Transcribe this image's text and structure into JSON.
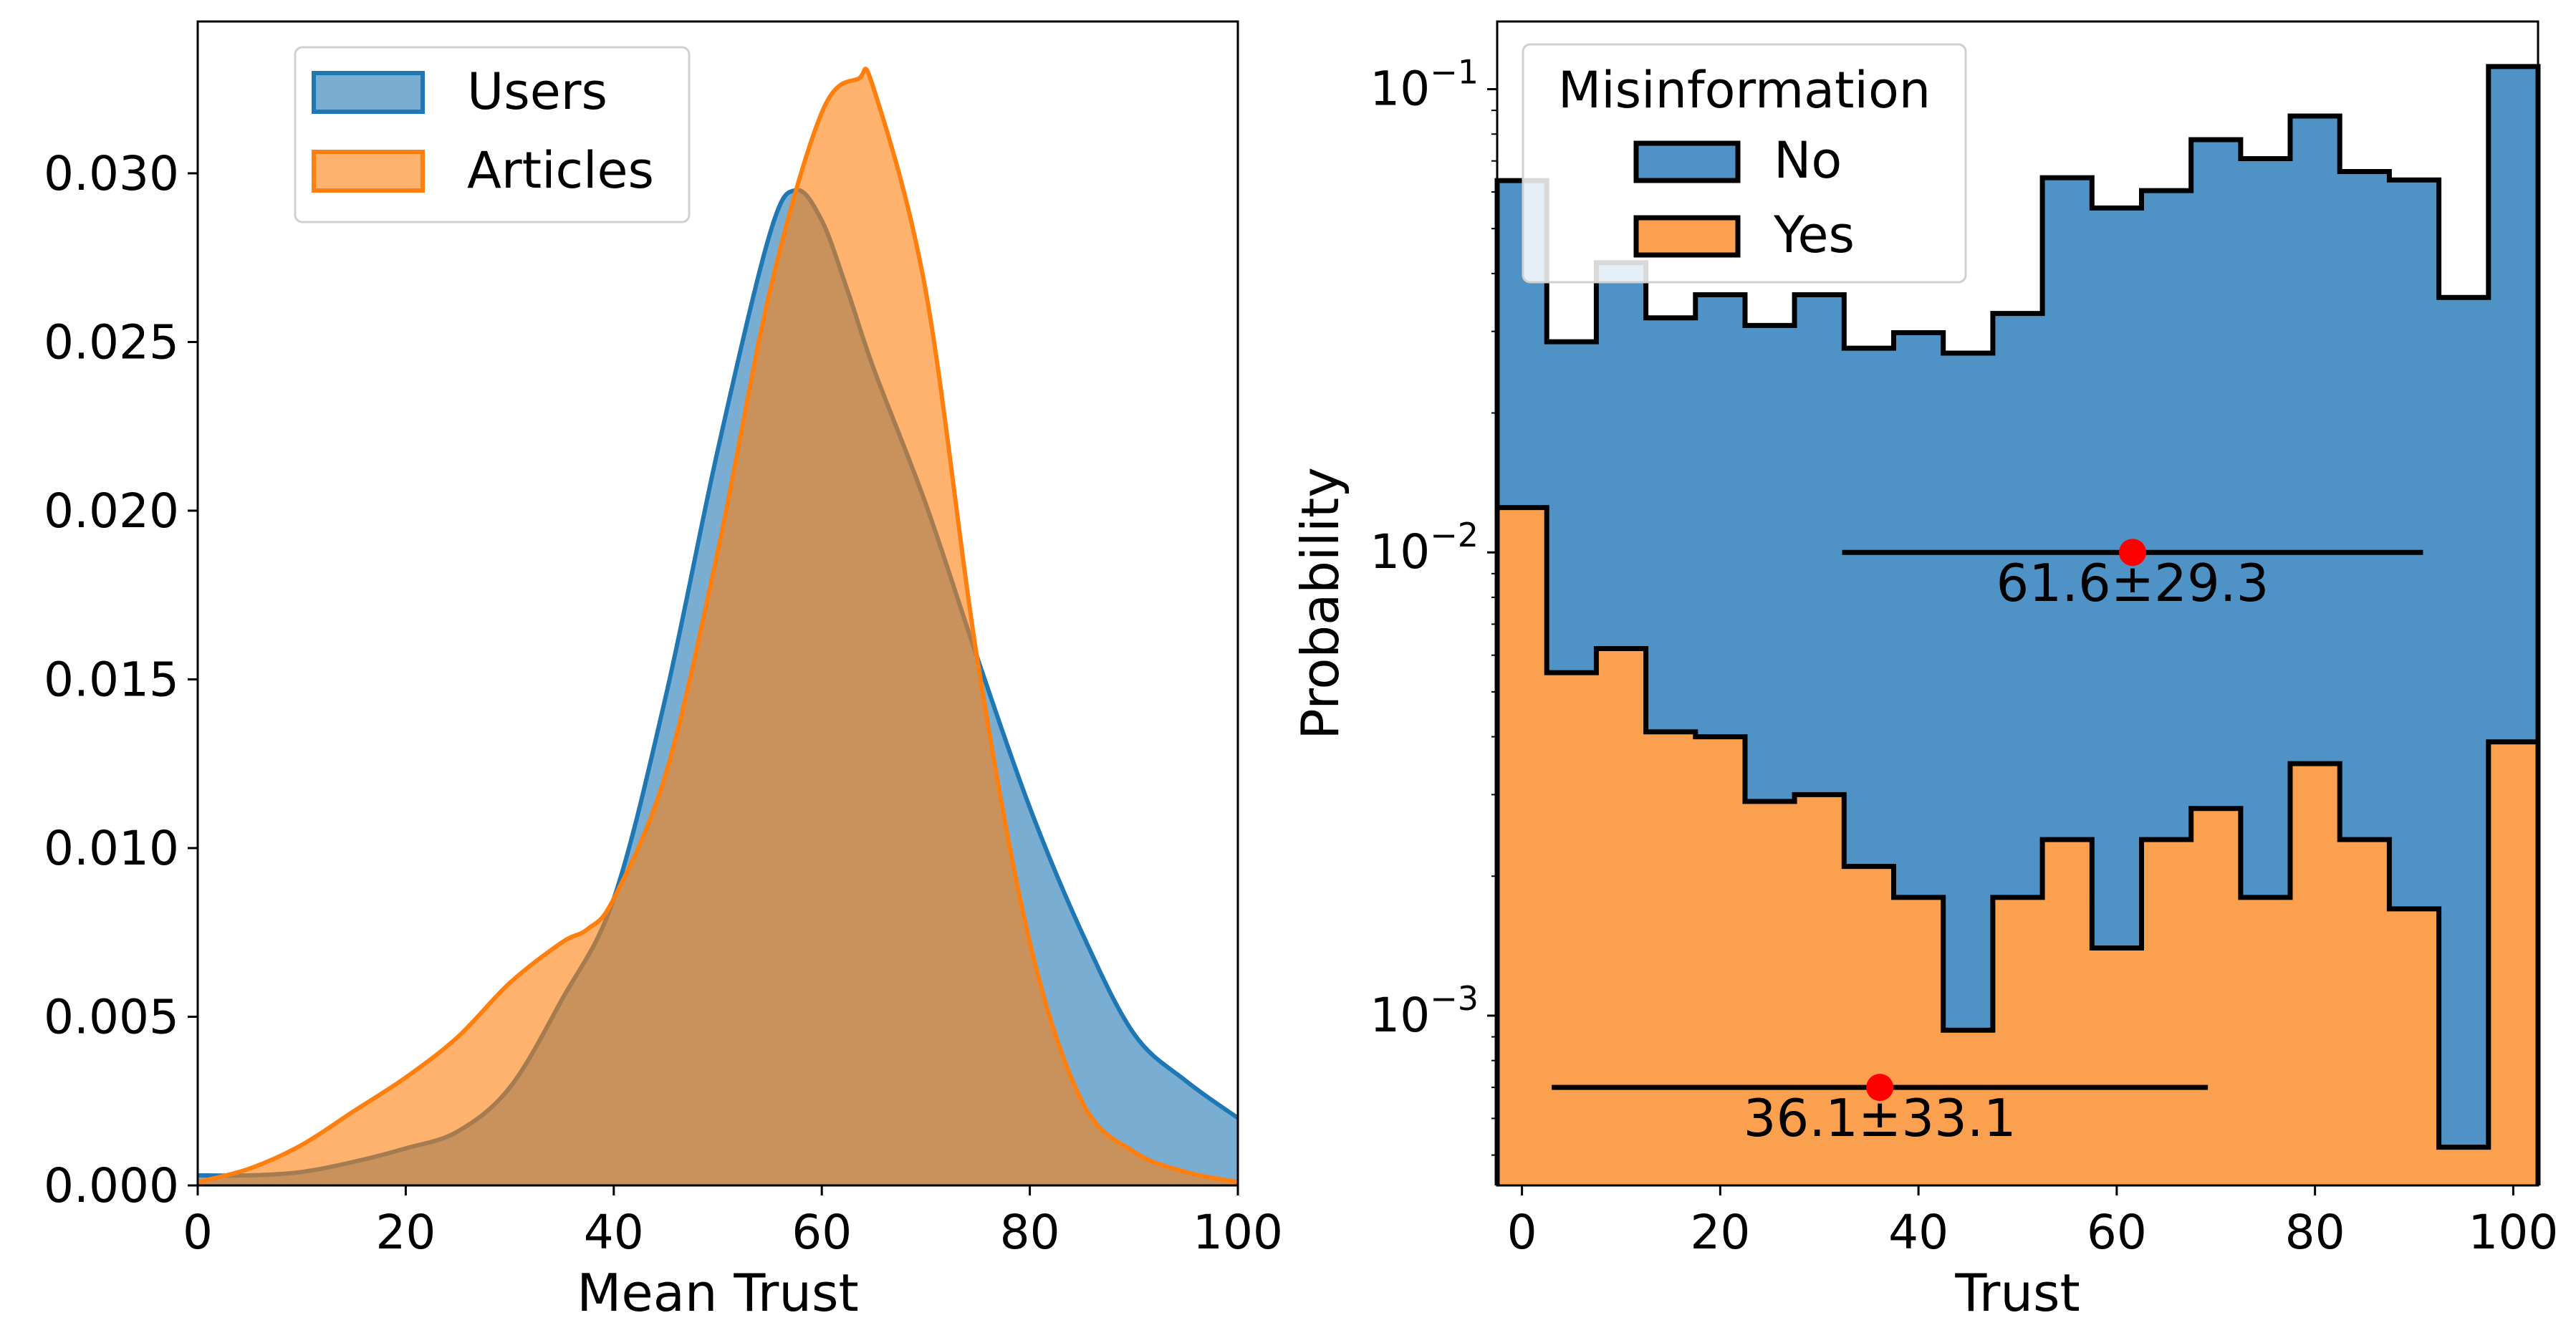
{
  "colors": {
    "users": "#1f77b4",
    "articles": "#ff7f0e",
    "no": "#4f93c6",
    "yes": "#fba04e",
    "mean_marker": "#ff0000"
  },
  "chart_data": [
    {
      "type": "area",
      "xlabel": "Mean Trust",
      "ylabel": "",
      "xlim": [
        0,
        100
      ],
      "ylim": [
        0,
        0.0345
      ],
      "xticks": [
        "0",
        "20",
        "40",
        "60",
        "80",
        "100"
      ],
      "yticks": [
        "0.000",
        "0.005",
        "0.010",
        "0.015",
        "0.020",
        "0.025",
        "0.030"
      ],
      "legend": {
        "placement": "top-left"
      },
      "series": [
        {
          "name": "Users",
          "x": [
            0,
            5,
            10,
            15,
            20,
            25,
            30,
            35,
            40,
            45,
            50,
            55,
            57.5,
            60,
            62.5,
            65,
            70,
            75,
            80,
            85,
            90,
            95,
            100
          ],
          "y": [
            0.0003,
            0.0003,
            0.0004,
            0.0007,
            0.0011,
            0.0016,
            0.0029,
            0.0055,
            0.0085,
            0.0145,
            0.0218,
            0.0282,
            0.0295,
            0.0286,
            0.0265,
            0.0242,
            0.0202,
            0.0156,
            0.0112,
            0.0075,
            0.0045,
            0.0031,
            0.002
          ]
        },
        {
          "name": "Articles",
          "x": [
            0,
            5,
            10,
            15,
            20,
            25,
            30,
            35,
            37.5,
            40,
            45,
            50,
            55,
            60,
            63.5,
            65,
            70,
            75,
            80,
            85,
            90,
            95,
            100
          ],
          "y": [
            0.0001,
            0.0005,
            0.0012,
            0.0022,
            0.0032,
            0.0044,
            0.006,
            0.0072,
            0.0076,
            0.0085,
            0.0122,
            0.0188,
            0.0265,
            0.0318,
            0.0328,
            0.0325,
            0.0265,
            0.0155,
            0.0072,
            0.0025,
            0.001,
            0.0004,
            0.0001
          ]
        }
      ]
    },
    {
      "type": "bar",
      "subtype": "stacked-step-histogram",
      "xlabel": "Trust",
      "ylabel": "Probability",
      "xlim": [
        -2.5,
        102.5
      ],
      "ylim": [
        0.00043,
        0.14
      ],
      "yscale": "log",
      "xticks": [
        "0",
        "20",
        "40",
        "60",
        "80",
        "100"
      ],
      "yticks": [
        {
          "base": "10",
          "exp": "−1",
          "value": 0.1
        },
        {
          "base": "10",
          "exp": "−2",
          "value": 0.01
        },
        {
          "base": "10",
          "exp": "−3",
          "value": 0.001
        }
      ],
      "legend": {
        "title": "Misinformation",
        "placement": "top-left"
      },
      "bin_edges": [
        -2.5,
        2.5,
        7.5,
        12.5,
        17.5,
        22.5,
        27.5,
        32.5,
        37.5,
        42.5,
        47.5,
        52.5,
        57.5,
        62.5,
        67.5,
        72.5,
        77.5,
        82.5,
        87.5,
        92.5,
        97.5,
        102.5
      ],
      "series": [
        {
          "name": "No",
          "values": [
            0.051,
            0.023,
            0.036,
            0.028,
            0.032,
            0.028,
            0.033,
            0.0255,
            0.028,
            0.026,
            0.031,
            0.062,
            0.054,
            0.058,
            0.075,
            0.069,
            0.084,
            0.064,
            0.062,
            0.035,
            0.108
          ]
        },
        {
          "name": "Yes",
          "values": [
            0.0125,
            0.0055,
            0.0062,
            0.0041,
            0.004,
            0.0029,
            0.003,
            0.0021,
            0.0018,
            0.00093,
            0.0018,
            0.0024,
            0.0014,
            0.0024,
            0.0028,
            0.0018,
            0.0035,
            0.0024,
            0.0017,
            0.00052,
            0.0039
          ]
        }
      ],
      "annotations": [
        {
          "label": "61.6±29.3",
          "mean": 61.6,
          "sd": 29.3,
          "y": 0.01
        },
        {
          "label": "36.1±33.1",
          "mean": 36.1,
          "sd": 33.1,
          "y": 0.0007
        }
      ]
    }
  ]
}
